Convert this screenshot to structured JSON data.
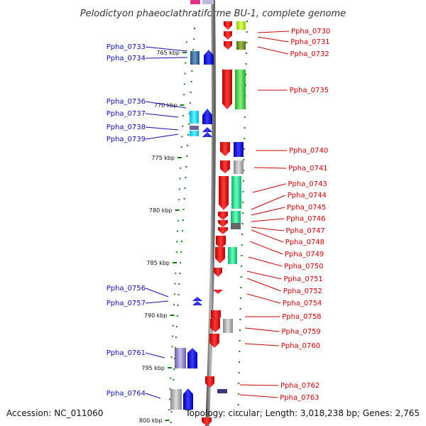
{
  "title": "Pelodictyon phaeoclathratiforme BU-1, complete genome",
  "footer": {
    "accession": "Accession: NC_011060",
    "summary": "Topology: circular; Length: 3,018,238 bp; Genes: 2,765"
  },
  "colors": {
    "background": "#ffffff",
    "backbone": "#888888",
    "ruler_tick": "#1a7a1a",
    "left_label": "#1010b0",
    "right_label": "#cc0000",
    "strand_minus": "#ee0000",
    "strand_plus": "#0000ee"
  },
  "ruler": {
    "unit": "kbp",
    "ticks": [
      {
        "kbp": 765,
        "label": "765 kbp"
      },
      {
        "kbp": 770,
        "label": "770 kbp"
      },
      {
        "kbp": 775,
        "label": "775 kbp"
      },
      {
        "kbp": 780,
        "label": "780 kbp"
      },
      {
        "kbp": 785,
        "label": "785 kbp"
      },
      {
        "kbp": 790,
        "label": "790 kbp"
      },
      {
        "kbp": 795,
        "label": "795 kbp"
      },
      {
        "kbp": 800,
        "label": "800 kbp"
      }
    ]
  },
  "genes_left": [
    {
      "label": "Ppha_0733"
    },
    {
      "label": "Ppha_0734"
    },
    {
      "label": "Ppha_0736"
    },
    {
      "label": "Ppha_0737"
    },
    {
      "label": "Ppha_0738"
    },
    {
      "label": "Ppha_0739"
    },
    {
      "label": "Ppha_0756"
    },
    {
      "label": "Ppha_0757"
    },
    {
      "label": "Ppha_0761"
    },
    {
      "label": "Ppha_0764"
    }
  ],
  "genes_right": [
    {
      "label": "Ppha_0730"
    },
    {
      "label": "Ppha_0731"
    },
    {
      "label": "Ppha_0732"
    },
    {
      "label": "Ppha_0735"
    },
    {
      "label": "Ppha_0740"
    },
    {
      "label": "Ppha_0741"
    },
    {
      "label": "Ppha_0743"
    },
    {
      "label": "Ppha_0744"
    },
    {
      "label": "Ppha_0745"
    },
    {
      "label": "Ppha_0746"
    },
    {
      "label": "Ppha_0747"
    },
    {
      "label": "Ppha_0748"
    },
    {
      "label": "Ppha_0749"
    },
    {
      "label": "Ppha_0750"
    },
    {
      "label": "Ppha_0751"
    },
    {
      "label": "Ppha_0752"
    },
    {
      "label": "Ppha_0754"
    },
    {
      "label": "Ppha_0758"
    },
    {
      "label": "Ppha_0759"
    },
    {
      "label": "Ppha_0760"
    },
    {
      "label": "Ppha_0762"
    },
    {
      "label": "Ppha_0763"
    }
  ]
}
